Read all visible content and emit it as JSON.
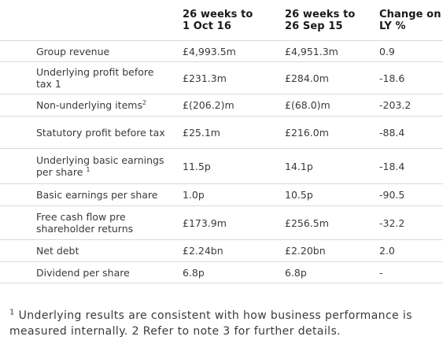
{
  "header": {
    "col_a": "26 weeks to\n1 Oct 16",
    "col_a_line1": "26 weeks to",
    "col_a_line2": "1 Oct 16",
    "col_b_line1": "26 weeks to",
    "col_b_line2": "26 Sep 15",
    "col_c_line1": "Change on",
    "col_c_line2": "LY %"
  },
  "rows": [
    {
      "label": "Group revenue",
      "sup": "",
      "a": "£4,993.5m",
      "b": "£4,951.3m",
      "c": "0.9"
    },
    {
      "label": "Underlying profit before tax 1",
      "sup": "",
      "a": "£231.3m",
      "b": "£284.0m",
      "c": "-18.6"
    },
    {
      "label": "Non-underlying items",
      "sup": "2",
      "a": "£(206.2)m",
      "b": "£(68.0)m",
      "c": "-203.2"
    },
    {
      "label": "Statutory profit before tax",
      "sup": "",
      "a": "£25.1m",
      "b": "£216.0m",
      "c": "-88.4"
    },
    {
      "label": "Underlying basic earnings per share",
      "sup": "1",
      "a": "11.5p",
      "b": "14.1p",
      "c": "-18.4"
    },
    {
      "label": "Basic earnings per share",
      "sup": "",
      "a": "1.0p",
      "b": "10.5p",
      "c": "-90.5"
    },
    {
      "label": "Free cash flow pre shareholder returns",
      "sup": "",
      "a": "£173.9m",
      "b": "£256.5m",
      "c": "-32.2"
    },
    {
      "label": "Net debt",
      "sup": "",
      "a": "£2.24bn",
      "b": "£2.20bn",
      "c": "2.0"
    },
    {
      "label": "Dividend per share",
      "sup": "",
      "a": "6.8p",
      "b": "6.8p",
      "c": "-"
    }
  ],
  "footnote": {
    "sup": "1",
    "text": " Underlying results are consistent with how business performance is measured internally. 2 Refer to note 3 for further details."
  }
}
